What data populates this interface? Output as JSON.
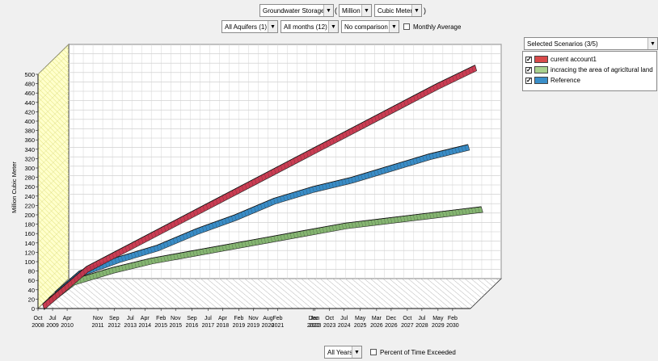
{
  "controls": {
    "variable": "Groundwater Storage",
    "scale": "Million",
    "unit": "Cubic Meter",
    "aquifers": "All Aquifers (1)",
    "months": "All months (12)",
    "comparison": "No comparison",
    "monthly_average_label": "Monthly Average",
    "scenarios": "Selected Scenarios (3/5)",
    "years": "All Years",
    "percent_exceeded_label": "Percent of Time Exceeded"
  },
  "legend": [
    {
      "name": "curent account1",
      "color": "#d94a4a"
    },
    {
      "name": "incracing the area of agricltural land",
      "color": "#a9d18e"
    },
    {
      "name": "Reference",
      "color": "#3a8fc9"
    }
  ],
  "chart_data": {
    "type": "area",
    "three_d": true,
    "ylabel": "Million Cubic Meter",
    "ylim": [
      0,
      500
    ],
    "yticks": [
      0,
      20,
      40,
      60,
      80,
      100,
      120,
      140,
      160,
      180,
      200,
      220,
      240,
      260,
      280,
      300,
      320,
      340,
      360,
      380,
      400,
      420,
      440,
      460,
      480,
      500
    ],
    "grid": true,
    "xticks": [
      {
        "m": "Oct",
        "y": "2008",
        "t": 2008.75
      },
      {
        "m": "Jul",
        "y": "2009",
        "t": 2009.5
      },
      {
        "m": "Apr",
        "y": "2010",
        "t": 2010.25
      },
      {
        "m": "Nov",
        "y": "2011",
        "t": 2011.83
      },
      {
        "m": "Sep",
        "y": "2012",
        "t": 2012.67
      },
      {
        "m": "Jul",
        "y": "2013",
        "t": 2013.5
      },
      {
        "m": "Apr",
        "y": "2014",
        "t": 2014.25
      },
      {
        "m": "Feb",
        "y": "2015",
        "t": 2015.08
      },
      {
        "m": "Nov",
        "y": "2015",
        "t": 2015.83
      },
      {
        "m": "Sep",
        "y": "2016",
        "t": 2016.67
      },
      {
        "m": "Jul",
        "y": "2017",
        "t": 2017.5
      },
      {
        "m": "Apr",
        "y": "2018",
        "t": 2018.25
      },
      {
        "m": "Feb",
        "y": "2019",
        "t": 2019.08
      },
      {
        "m": "Nov",
        "y": "2019",
        "t": 2019.83
      },
      {
        "m": "Aug",
        "y": "2020",
        "t": 2020.58
      },
      {
        "m": "Feb",
        "y": "2021",
        "t": 2021.08
      },
      {
        "m": "Dec",
        "y": "2022",
        "t": 2022.92
      },
      {
        "m": "Jan",
        "y": "2023",
        "t": 2023.0
      },
      {
        "m": "Oct",
        "y": "2023",
        "t": 2023.75
      },
      {
        "m": "Jul",
        "y": "2024",
        "t": 2024.5
      },
      {
        "m": "May",
        "y": "2025",
        "t": 2025.33
      },
      {
        "m": "Mar",
        "y": "2026",
        "t": 2026.17
      },
      {
        "m": "Dec",
        "y": "2026",
        "t": 2026.92
      },
      {
        "m": "Oct",
        "y": "2027",
        "t": 2027.75
      },
      {
        "m": "Jul",
        "y": "2028",
        "t": 2028.5
      },
      {
        "m": "May",
        "y": "2029",
        "t": 2029.33
      },
      {
        "m": "Feb",
        "y": "2030",
        "t": 2030.08
      }
    ],
    "series": [
      {
        "name": "curent account1",
        "color": "#c8334a",
        "x": [
          2008.75,
          2011,
          2014,
          2017,
          2020,
          2023,
          2026,
          2029,
          2031
        ],
        "y": [
          0,
          80,
          145,
          210,
          275,
          340,
          405,
          470,
          510
        ]
      },
      {
        "name": "incracing the area of agricltural land",
        "color": "#7fb26a",
        "x": [
          2008.75,
          2010,
          2012,
          2014,
          2016,
          2018,
          2020,
          2022,
          2024,
          2026,
          2028,
          2030,
          2031
        ],
        "y": [
          0,
          40,
          65,
          85,
          100,
          115,
          130,
          145,
          160,
          170,
          180,
          190,
          195
        ]
      },
      {
        "name": "Reference",
        "color": "#2f86c4",
        "x": [
          2008.75,
          2010,
          2012,
          2014,
          2016,
          2018,
          2020,
          2022,
          2024,
          2026,
          2028,
          2030
        ],
        "y": [
          0,
          45,
          75,
          100,
          135,
          165,
          200,
          225,
          245,
          270,
          295,
          315
        ]
      }
    ]
  }
}
